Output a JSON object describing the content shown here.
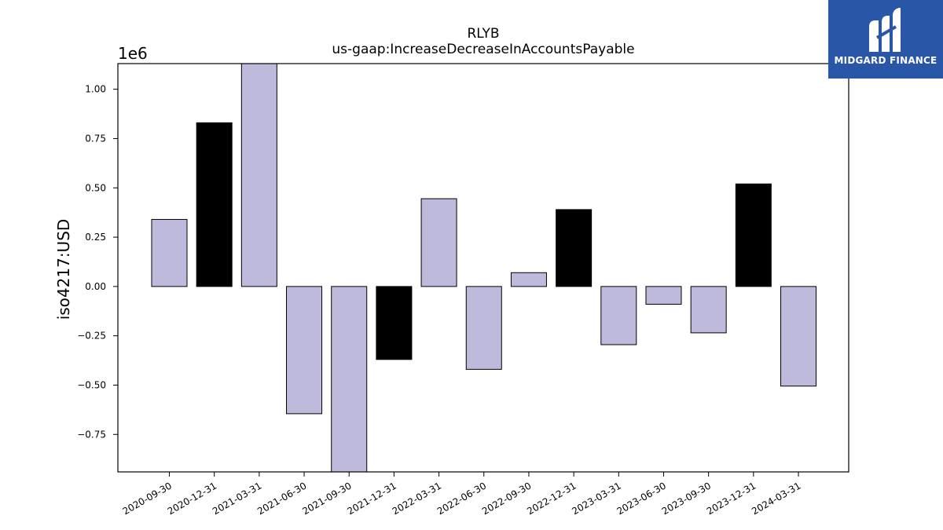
{
  "chart_data": {
    "type": "bar",
    "title": "RLYB",
    "subtitle": "us-gaap:IncreaseDecreaseInAccountsPayable",
    "ylabel": "iso4217:USD",
    "xlabel": "",
    "y_offset_label": "1e6",
    "ylim": [
      -0.94,
      1.13
    ],
    "yticks": [
      -0.75,
      -0.5,
      -0.25,
      0.0,
      0.25,
      0.5,
      0.75,
      1.0
    ],
    "ytick_labels": [
      "−0.75",
      "−0.50",
      "−0.25",
      "0.00",
      "0.25",
      "0.50",
      "0.75",
      "1.00"
    ],
    "categories": [
      "2020-09-30",
      "2020-12-31",
      "2021-03-31",
      "2021-06-30",
      "2021-09-30",
      "2021-12-31",
      "2022-03-31",
      "2022-06-30",
      "2022-09-30",
      "2022-12-31",
      "2023-03-31",
      "2023-06-30",
      "2023-09-30",
      "2023-12-31",
      "2024-03-31"
    ],
    "values": [
      0.34,
      0.83,
      1.13,
      -0.645,
      -0.94,
      -0.37,
      0.445,
      -0.42,
      0.07,
      0.39,
      -0.295,
      -0.09,
      -0.235,
      0.52,
      -0.505
    ],
    "quarter_end_q4": [
      false,
      true,
      false,
      false,
      false,
      true,
      false,
      false,
      false,
      true,
      false,
      false,
      false,
      true,
      false
    ],
    "colors": {
      "regular": "#bebadb",
      "q4": "#000000",
      "edge": "#000000"
    },
    "grid": false
  },
  "logo": {
    "text": "MIDGARD FINANCE",
    "color": "#2a56a8"
  }
}
